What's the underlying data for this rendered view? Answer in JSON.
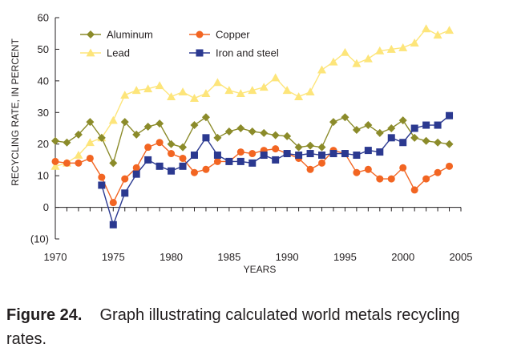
{
  "chart_data": {
    "type": "line",
    "xlabel": "YEARS",
    "ylabel": "RECYCLING RATE, IN PERCENT",
    "xlim": [
      1970,
      2005
    ],
    "ylim": [
      -10,
      60
    ],
    "x_ticks": [
      1970,
      1975,
      1980,
      1985,
      1990,
      1995,
      2000,
      2005
    ],
    "x_tick_labels": [
      "1970",
      "1975",
      "1980",
      "1985",
      "1990",
      "1995",
      "2000",
      "2005"
    ],
    "y_ticks": [
      -10,
      0,
      10,
      20,
      30,
      40,
      50,
      60
    ],
    "y_tick_labels": [
      "(10)",
      "0",
      "10",
      "20",
      "30",
      "40",
      "50",
      "60"
    ],
    "grid": false,
    "legend": "top-left",
    "series": [
      {
        "name": "Aluminum",
        "color": "#8b8b2a",
        "marker": "diamond",
        "x": [
          1970,
          1971,
          1972,
          1973,
          1974,
          1975,
          1976,
          1977,
          1978,
          1979,
          1980,
          1981,
          1982,
          1983,
          1984,
          1985,
          1986,
          1987,
          1988,
          1989,
          1990,
          1991,
          1992,
          1993,
          1994,
          1995,
          1996,
          1997,
          1998,
          1999,
          2000,
          2001,
          2002,
          2003,
          2004
        ],
        "y": [
          21,
          20.5,
          23,
          27,
          22,
          14,
          27,
          23,
          25.5,
          26.5,
          20,
          19,
          26,
          28.5,
          22,
          24,
          25,
          24,
          23.5,
          22.8,
          22.5,
          19,
          19.5,
          19,
          27,
          28.5,
          24.5,
          26,
          23.5,
          25,
          27.5,
          22,
          21,
          20.5,
          20
        ]
      },
      {
        "name": "Copper",
        "color": "#f26522",
        "marker": "circle",
        "x": [
          1970,
          1971,
          1972,
          1973,
          1974,
          1975,
          1976,
          1977,
          1978,
          1979,
          1980,
          1981,
          1982,
          1983,
          1984,
          1985,
          1986,
          1987,
          1988,
          1989,
          1990,
          1991,
          1992,
          1993,
          1994,
          1995,
          1996,
          1997,
          1998,
          1999,
          2000,
          2001,
          2002,
          2003,
          2004
        ],
        "y": [
          14.5,
          14,
          14,
          15.5,
          9.5,
          1.5,
          9,
          12.5,
          19,
          20.5,
          17,
          15.5,
          11,
          12,
          14.5,
          14.5,
          17.5,
          17,
          18,
          18.5,
          17,
          15.5,
          12,
          14,
          18,
          17,
          11,
          12,
          9,
          9,
          12.5,
          5.5,
          9,
          11,
          13
        ]
      },
      {
        "name": "Lead",
        "color": "#fde57a",
        "marker": "triangle",
        "x": [
          1970,
          1971,
          1972,
          1973,
          1974,
          1975,
          1976,
          1977,
          1978,
          1979,
          1980,
          1981,
          1982,
          1983,
          1984,
          1985,
          1986,
          1987,
          1988,
          1989,
          1990,
          1991,
          1992,
          1993,
          1994,
          1995,
          1996,
          1997,
          1998,
          1999,
          2000,
          2001,
          2002,
          2003,
          2004
        ],
        "y": [
          13,
          14,
          16.5,
          20.5,
          22,
          27.5,
          35.5,
          37,
          37.5,
          38.5,
          35,
          36.5,
          34.5,
          36,
          39.5,
          37,
          36,
          37,
          38,
          41,
          37,
          35,
          36.5,
          43.5,
          46,
          49,
          45.5,
          47,
          49.5,
          50,
          50.5,
          52,
          56.5,
          54.5,
          56
        ]
      },
      {
        "name": "Iron and steel",
        "color": "#2b3990",
        "marker": "square",
        "x": [
          1974,
          1975,
          1976,
          1977,
          1978,
          1979,
          1980,
          1981,
          1982,
          1983,
          1984,
          1985,
          1986,
          1987,
          1988,
          1989,
          1990,
          1991,
          1992,
          1993,
          1994,
          1995,
          1996,
          1997,
          1998,
          1999,
          2000,
          2001,
          2002,
          2003,
          2004
        ],
        "y": [
          7,
          -5.5,
          4.5,
          10.5,
          15,
          13,
          11.5,
          13,
          16.5,
          22,
          16.5,
          14.5,
          14.5,
          14,
          16.5,
          15,
          17,
          16.5,
          17,
          16.5,
          17,
          17,
          16.5,
          18,
          17.5,
          22,
          20.5,
          25,
          26,
          26,
          29
        ]
      }
    ]
  },
  "caption": {
    "label": "Figure 24.",
    "text": "Graph illustrating calculated world metals recycling rates."
  }
}
